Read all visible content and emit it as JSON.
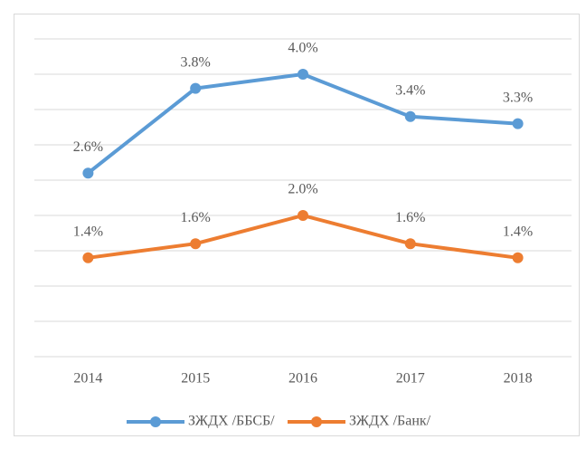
{
  "chart_data": {
    "type": "line",
    "categories": [
      "2014",
      "2015",
      "2016",
      "2017",
      "2018"
    ],
    "series": [
      {
        "name": "ЗЖДХ /ББСБ/",
        "color": "#5b9bd5",
        "values": [
          2.6,
          3.8,
          4.0,
          3.4,
          3.3
        ],
        "value_labels": [
          "2.6%",
          "3.8%",
          "4.0%",
          "3.4%",
          "3.3%"
        ]
      },
      {
        "name": "ЗЖДХ /Банк/",
        "color": "#ed7d31",
        "values": [
          1.4,
          1.6,
          2.0,
          1.6,
          1.4
        ],
        "value_labels": [
          "1.4%",
          "1.6%",
          "2.0%",
          "1.6%",
          "1.4%"
        ]
      }
    ],
    "ylim": [
      0,
      4.5
    ],
    "yticks": [
      0,
      0.5,
      1,
      1.5,
      2,
      2.5,
      3,
      3.5,
      4,
      4.5
    ],
    "grid": true,
    "legend": "bottom"
  }
}
